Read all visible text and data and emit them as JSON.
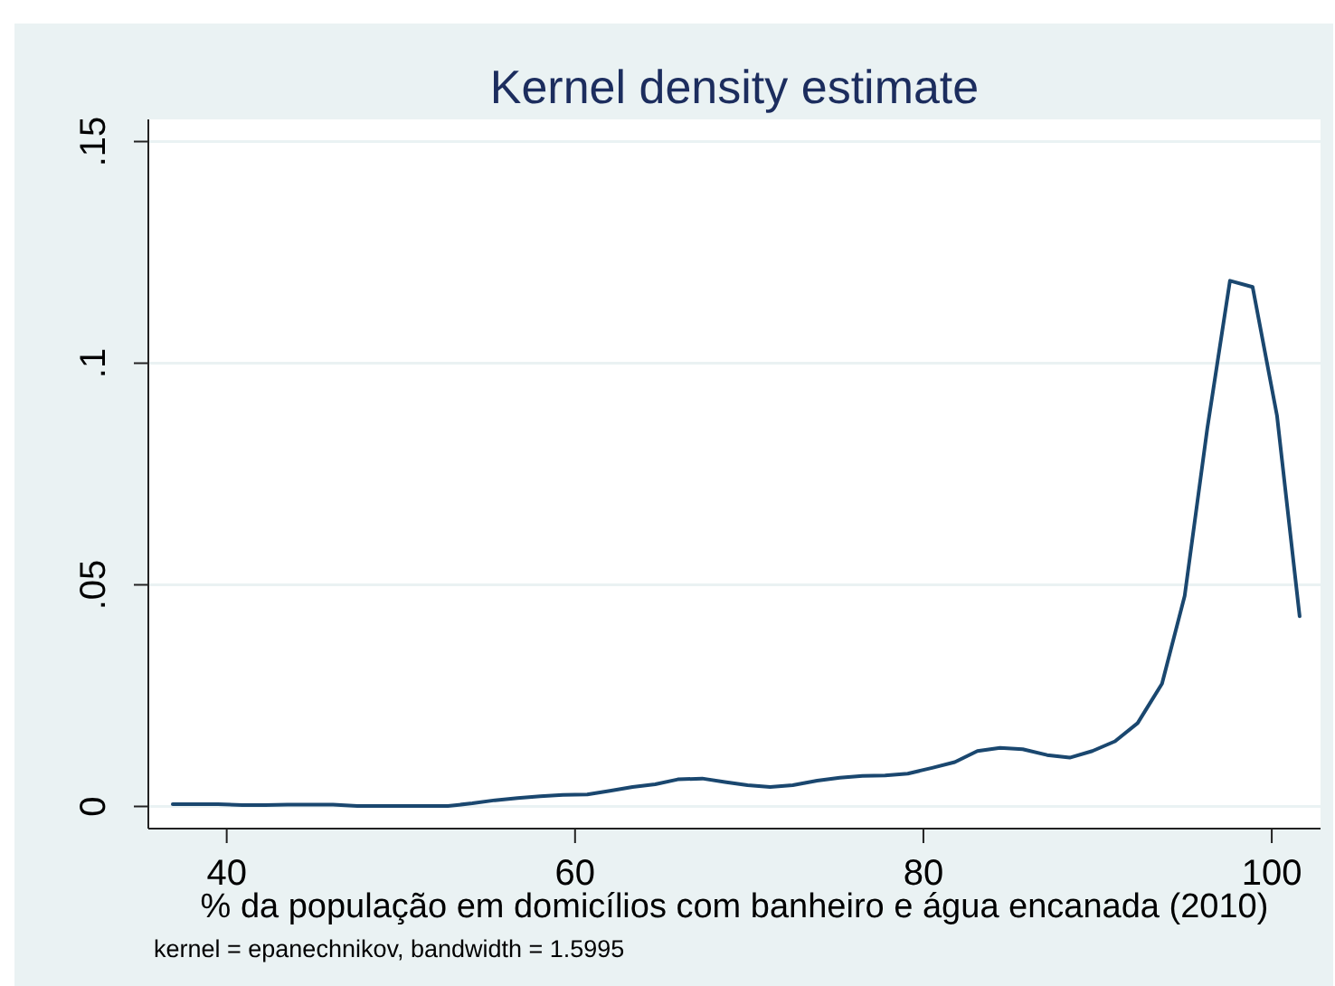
{
  "chart_data": {
    "type": "line",
    "title": "Kernel density estimate",
    "xlabel": "% da população em domicílios com banheiro e água encanada (2010)",
    "annotations": [
      "kernel = epanechnikov, bandwidth = 1.5995"
    ],
    "x": [
      36.9,
      38.2,
      39.5,
      40.9,
      42.2,
      43.5,
      44.8,
      46.1,
      47.5,
      48.8,
      50.1,
      51.4,
      52.7,
      54.1,
      55.4,
      56.7,
      58.0,
      59.3,
      60.7,
      62.0,
      63.3,
      64.6,
      65.9,
      67.3,
      68.6,
      69.9,
      71.2,
      72.5,
      73.9,
      75.2,
      76.5,
      77.8,
      79.1,
      80.5,
      81.8,
      83.1,
      84.4,
      85.7,
      87.1,
      88.4,
      89.7,
      91.0,
      92.3,
      93.7,
      95.0,
      96.3,
      97.6,
      98.9,
      100.3,
      101.6
    ],
    "series": [
      {
        "color": "#1a476f",
        "values": [
          0.0005,
          0.0005,
          0.0005,
          0.0003,
          0.0003,
          0.0004,
          0.0004,
          0.0004,
          0.0001,
          0.0001,
          0.0001,
          0.0001,
          0.0001,
          0.0007,
          0.0014,
          0.0019,
          0.0023,
          0.0026,
          0.0027,
          0.0035,
          0.0044,
          0.005,
          0.0061,
          0.0063,
          0.0055,
          0.0048,
          0.0044,
          0.0048,
          0.0058,
          0.0065,
          0.0069,
          0.007,
          0.0074,
          0.0087,
          0.01,
          0.0125,
          0.0132,
          0.0129,
          0.0116,
          0.011,
          0.0125,
          0.0147,
          0.0188,
          0.0277,
          0.0475,
          0.0853,
          0.1186,
          0.1172,
          0.0882,
          0.0429
        ]
      }
    ],
    "xlim": [
      35.5,
      102.8
    ],
    "ylim": [
      -0.005,
      0.155
    ],
    "xticks": [
      40,
      60,
      80,
      100
    ],
    "yticks": [
      0,
      {
        "value": 0.05,
        "label": ".05"
      },
      {
        "value": 0.1,
        "label": ".1"
      },
      {
        "value": 0.15,
        "label": ".15"
      }
    ],
    "grid": "y"
  }
}
